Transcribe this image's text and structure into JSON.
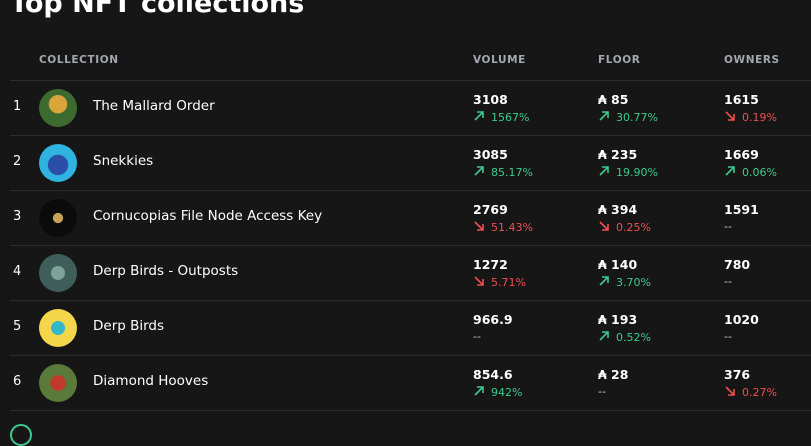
{
  "header": {
    "title": "Top NFT collections"
  },
  "table": {
    "columns": [
      "COLLECTION",
      "VOLUME",
      "FLOOR",
      "OWNERS"
    ],
    "rows": [
      {
        "rank": "1",
        "name": "The Mallard Order",
        "volume": "3108",
        "volume_change": {
          "text": "1567%",
          "trend": "up"
        },
        "floor": "₳ 85",
        "floor_change": {
          "text": "30.77%",
          "trend": "up"
        },
        "owners": "1615",
        "owners_change": {
          "text": "0.19%",
          "trend": "down"
        }
      },
      {
        "rank": "2",
        "name": "Snekkies",
        "volume": "3085",
        "volume_change": {
          "text": "85.17%",
          "trend": "up"
        },
        "floor": "₳ 235",
        "floor_change": {
          "text": "19.90%",
          "trend": "up"
        },
        "owners": "1669",
        "owners_change": {
          "text": "0.06%",
          "trend": "up"
        }
      },
      {
        "rank": "3",
        "name": "Cornucopias File Node Access Key",
        "volume": "2769",
        "volume_change": {
          "text": "51.43%",
          "trend": "down"
        },
        "floor": "₳ 394",
        "floor_change": {
          "text": "0.25%",
          "trend": "down"
        },
        "owners": "1591",
        "owners_change": {
          "text": "--"
        }
      },
      {
        "rank": "4",
        "name": "Derp Birds - Outposts",
        "volume": "1272",
        "volume_change": {
          "text": "5.71%",
          "trend": "down"
        },
        "floor": "₳ 140",
        "floor_change": {
          "text": "3.70%",
          "trend": "up"
        },
        "owners": "780",
        "owners_change": {
          "text": "--"
        }
      },
      {
        "rank": "5",
        "name": "Derp Birds",
        "volume": "966.9",
        "volume_change": {
          "text": "--"
        },
        "floor": "₳ 193",
        "floor_change": {
          "text": "0.52%",
          "trend": "up"
        },
        "owners": "1020",
        "owners_change": {
          "text": "--"
        }
      },
      {
        "rank": "6",
        "name": "Diamond Hooves",
        "volume": "854.6",
        "volume_change": {
          "text": "942%",
          "trend": "up"
        },
        "floor": "₳ 28",
        "floor_change": {
          "text": "--"
        },
        "owners": "376",
        "owners_change": {
          "text": "0.27%",
          "trend": "down"
        }
      }
    ]
  }
}
